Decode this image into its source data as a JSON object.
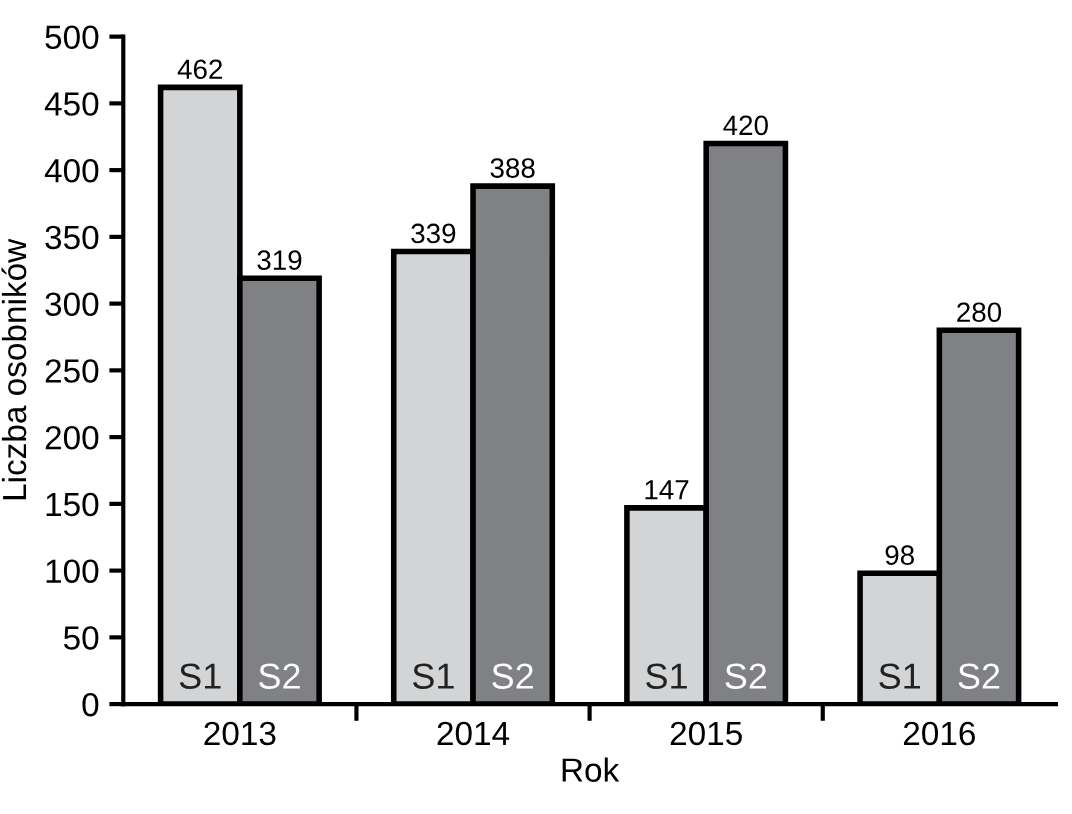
{
  "chart_data": {
    "type": "bar",
    "xlabel": "Rok",
    "ylabel": "Liczba osobników",
    "categories": [
      "2013",
      "2014",
      "2015",
      "2016"
    ],
    "series": [
      {
        "name": "S1",
        "color": "#d3d4d6",
        "values": [
          462,
          339,
          147,
          98
        ]
      },
      {
        "name": "S2",
        "color": "#808184",
        "values": [
          319,
          388,
          420,
          280
        ]
      }
    ],
    "ylim": [
      0,
      500
    ],
    "yticks": [
      0,
      50,
      100,
      150,
      200,
      250,
      300,
      350,
      400,
      450,
      500
    ],
    "data_labels": true,
    "grid": false
  }
}
